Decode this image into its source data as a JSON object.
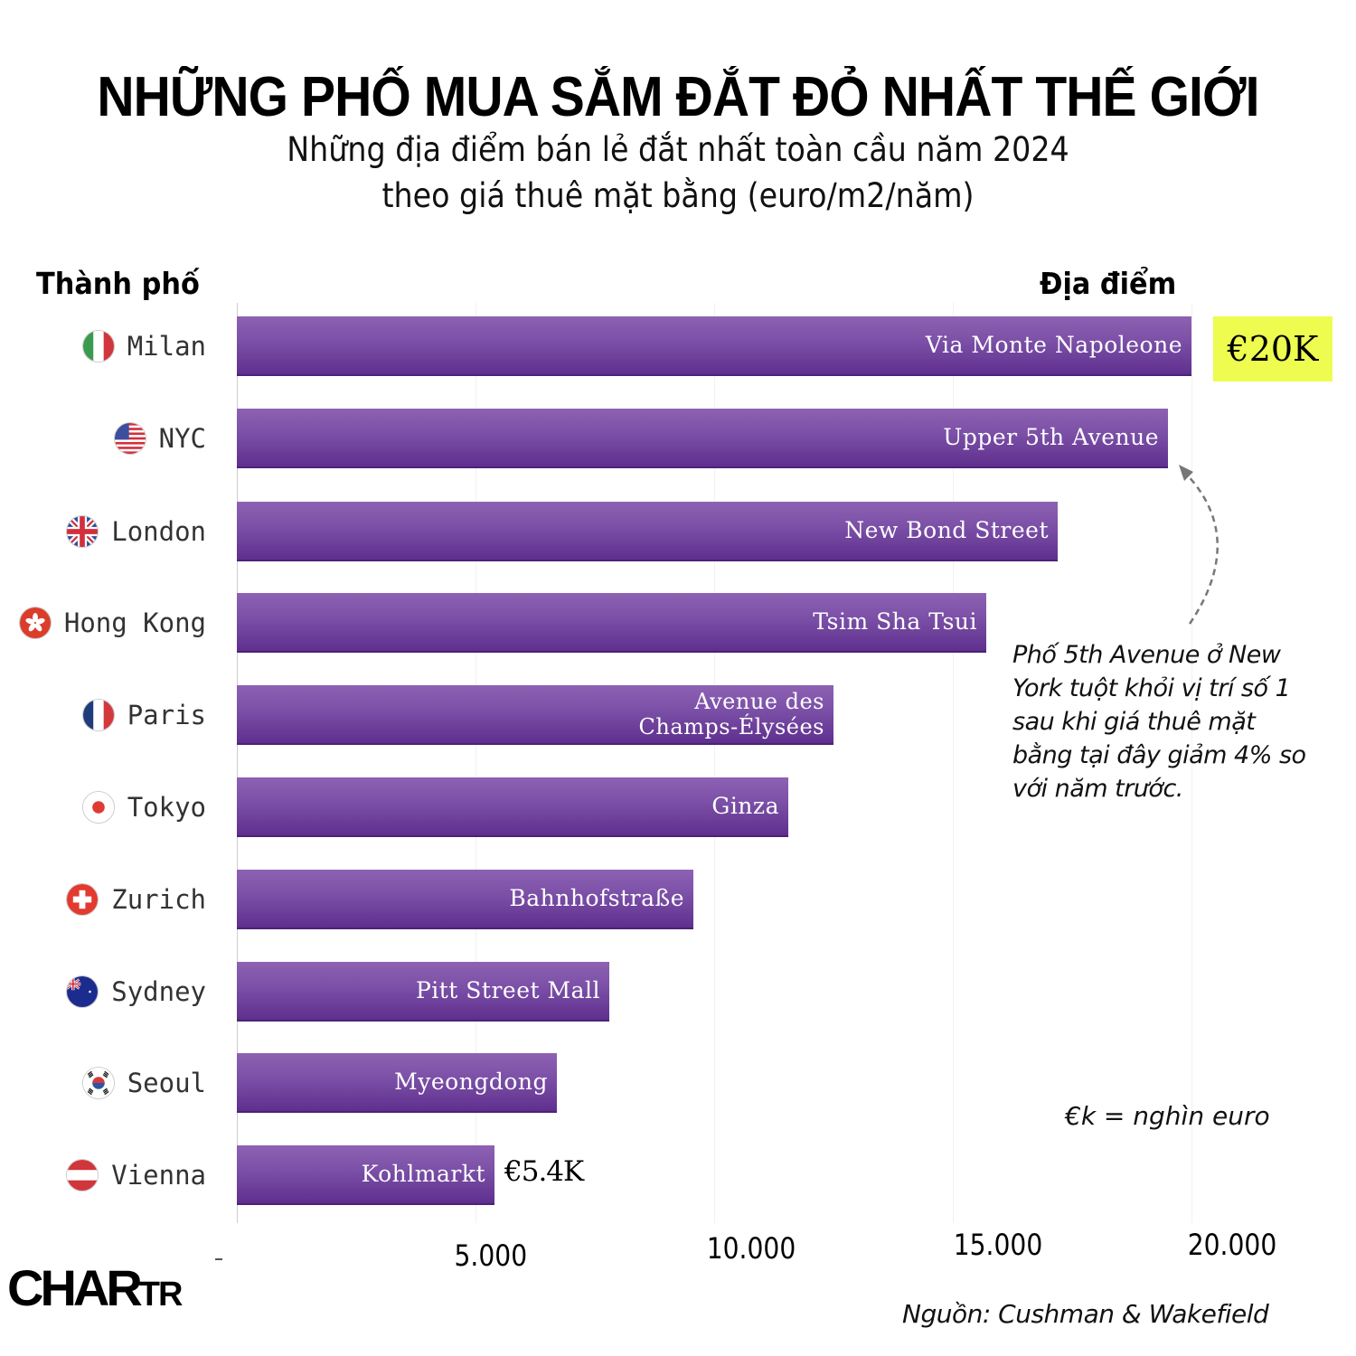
{
  "header": {
    "title": "NHỮNG PHỐ MUA SẮM ĐẮT ĐỎ NHẤT THẾ GIỚI",
    "subtitle_line1": "Những địa điểm bán lẻ đắt nhất toàn cầu năm 2024",
    "subtitle_line2": "theo giá thuê mặt bằng (euro/m2/năm)"
  },
  "columns": {
    "city_header": "Thành phố",
    "place_header": "Địa điểm"
  },
  "rows": [
    {
      "city": "Milan",
      "flag": "italy-flag-icon",
      "place": "Via Monte Napoleone",
      "value": 20000
    },
    {
      "city": "NYC",
      "flag": "usa-flag-icon",
      "place": "Upper 5th Avenue",
      "value": 19500
    },
    {
      "city": "London",
      "flag": "uk-flag-icon",
      "place": "New Bond Street",
      "value": 17200
    },
    {
      "city": "Hong Kong",
      "flag": "hong-kong-flag-icon",
      "place": "Tsim Sha Tsui",
      "value": 15700
    },
    {
      "city": "Paris",
      "flag": "france-flag-icon",
      "place": "Avenue des\nChamps-Élysées",
      "value": 12500
    },
    {
      "city": "Tokyo",
      "flag": "japan-flag-icon",
      "place": "Ginza",
      "value": 11550
    },
    {
      "city": "Zurich",
      "flag": "switzerland-flag-icon",
      "place": "Bahnhofstraße",
      "value": 9560
    },
    {
      "city": "Sydney",
      "flag": "australia-flag-icon",
      "place": "Pitt Street Mall",
      "value": 7800
    },
    {
      "city": "Seoul",
      "flag": "south-korea-flag-icon",
      "place": "Myeongdong",
      "value": 6700
    },
    {
      "city": "Vienna",
      "flag": "austria-flag-icon",
      "place": "Kohlmarkt",
      "value": 5400
    }
  ],
  "value_labels": {
    "top": "€20K",
    "bottom": "€5.4K"
  },
  "axis": {
    "ticks": [
      "5.000",
      "10.000",
      "15.000",
      "20.000"
    ],
    "zero_tick": "-"
  },
  "annotation": {
    "text": "Phố 5th Avenue ở New\nYork tuột khỏi vị trí số 1\nsau khi giá thuê mặt\nbằng tại đây giảm 4% so\nvới năm trước."
  },
  "legend_note": "€k = nghìn euro",
  "source": "Nguồn: Cushman & Wakefield",
  "logo": {
    "main": "CHAR",
    "small": "TR"
  },
  "colors": {
    "bar_top": "#8d62b3",
    "bar_bottom": "#5f2f8e",
    "highlight": "#eefc4f",
    "text": "#000000"
  },
  "chart_data": {
    "type": "bar",
    "orientation": "horizontal",
    "title": "NHỮNG PHỐ MUA SẮM ĐẮT ĐỎ NHẤT THẾ GIỚI",
    "subtitle": "Những địa điểm bán lẻ đắt nhất toàn cầu năm 2024 theo giá thuê mặt bằng (euro/m2/năm)",
    "categories": [
      "Milan – Via Monte Napoleone",
      "NYC – Upper 5th Avenue",
      "London – New Bond Street",
      "Hong Kong – Tsim Sha Tsui",
      "Paris – Avenue des Champs-Élysées",
      "Tokyo – Ginza",
      "Zurich – Bahnhofstraße",
      "Sydney – Pitt Street Mall",
      "Seoul – Myeongdong",
      "Vienna – Kohlmarkt"
    ],
    "values": [
      20000,
      19500,
      17200,
      15700,
      12500,
      11550,
      9560,
      7800,
      6700,
      5400
    ],
    "xlabel": "",
    "ylabel": "Thành phố / Địa điểm",
    "xlim": [
      0,
      20000
    ],
    "xticks": [
      5000,
      10000,
      15000,
      20000
    ],
    "grid": true,
    "annotations": [
      "€20K (Milan)",
      "€5.4K (Vienna)",
      "Phố 5th Avenue ở New York tuột khỏi vị trí số 1 sau khi giá thuê mặt bằng tại đây giảm 4% so với năm trước.",
      "€k = nghìn euro"
    ],
    "source": "Nguồn: Cushman & Wakefield"
  }
}
